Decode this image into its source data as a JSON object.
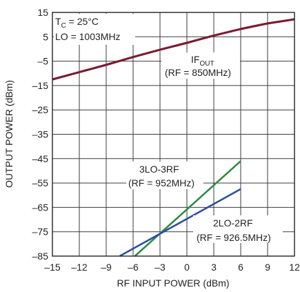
{
  "chart_data": {
    "type": "line",
    "xlabel": "RF INPUT POWER (dBm)",
    "ylabel": "OUTPUT POWER (dBm)",
    "xlim": [
      -15,
      12
    ],
    "ylim": [
      -85,
      15
    ],
    "xticks": [
      -15,
      -12,
      -9,
      -6,
      -3,
      0,
      3,
      6,
      9,
      12
    ],
    "yticks": [
      15,
      5,
      -5,
      -15,
      -25,
      -35,
      -45,
      -55,
      -65,
      -75,
      -85
    ],
    "grid": true,
    "conditions": {
      "tc_prefix": "T",
      "tc_sub": "C",
      "tc_value": " = 25°C",
      "lo": "LO = 1003MHz"
    },
    "series": [
      {
        "name_main": "IF",
        "name_sub": "OUT",
        "note": "(RF = 850MHz)",
        "color": "#7a1c33",
        "x": [
          -15,
          -12,
          -9,
          -6,
          -3,
          0,
          3,
          6,
          9,
          12
        ],
        "y": [
          -12.5,
          -9.5,
          -6.5,
          -3.3,
          -0.3,
          2.5,
          5.5,
          8.2,
          10.5,
          12.2
        ]
      },
      {
        "name": "3LO-3RF",
        "note": "(RF = 952MHz)",
        "color": "#2e8b46",
        "x": [
          -5.8,
          6
        ],
        "y": [
          -85,
          -46
        ]
      },
      {
        "name": "2LO-2RF",
        "note": "(RF = 926.5MHz)",
        "color": "#2a4fa0",
        "x": [
          -7.5,
          6
        ],
        "y": [
          -85,
          -57.5
        ]
      }
    ]
  }
}
